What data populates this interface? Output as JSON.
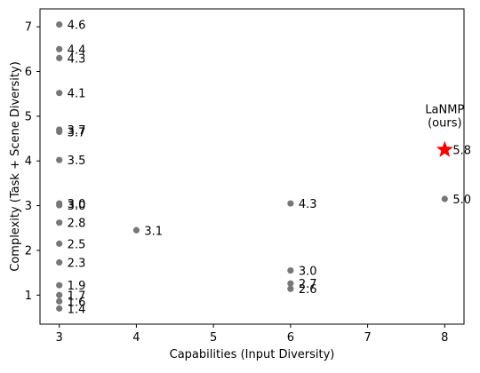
{
  "chart_data": {
    "type": "scatter",
    "title": "",
    "xlabel": "Capabilities (Input Diversity)",
    "ylabel": "Complexity (Task + Scene Diversity)",
    "xlim": [
      2.75,
      8.25
    ],
    "ylim": [
      0.35,
      7.4
    ],
    "xticks": [
      3,
      4,
      5,
      6,
      7,
      8
    ],
    "yticks": [
      1,
      2,
      3,
      4,
      5,
      6,
      7
    ],
    "grid": false,
    "legend": "none",
    "point_color": "#777777",
    "highlight_color": "#ff0000",
    "points": [
      {
        "x": 3,
        "y": 7.05,
        "label": "4.6"
      },
      {
        "x": 3,
        "y": 6.5,
        "label": "4.4"
      },
      {
        "x": 3,
        "y": 6.3,
        "label": "4.3"
      },
      {
        "x": 3,
        "y": 5.52,
        "label": "4.1"
      },
      {
        "x": 3,
        "y": 4.7,
        "label": "3.7"
      },
      {
        "x": 3,
        "y": 4.65,
        "label": "3.7"
      },
      {
        "x": 3,
        "y": 4.02,
        "label": "3.5"
      },
      {
        "x": 3,
        "y": 3.05,
        "label": "3.0"
      },
      {
        "x": 3,
        "y": 3.01,
        "label": "3.0"
      },
      {
        "x": 3,
        "y": 2.62,
        "label": "2.8"
      },
      {
        "x": 3,
        "y": 2.15,
        "label": "2.5"
      },
      {
        "x": 3,
        "y": 1.73,
        "label": "2.3"
      },
      {
        "x": 3,
        "y": 1.22,
        "label": "1.9"
      },
      {
        "x": 3,
        "y": 1.0,
        "label": "1.7"
      },
      {
        "x": 3,
        "y": 0.86,
        "label": "1.6"
      },
      {
        "x": 3,
        "y": 0.7,
        "label": "1.4"
      },
      {
        "x": 4,
        "y": 2.45,
        "label": "3.1"
      },
      {
        "x": 6,
        "y": 3.05,
        "label": "4.3"
      },
      {
        "x": 6,
        "y": 1.55,
        "label": "3.0"
      },
      {
        "x": 6,
        "y": 1.26,
        "label": "2.7"
      },
      {
        "x": 6,
        "y": 1.14,
        "label": "2.6"
      },
      {
        "x": 8,
        "y": 3.15,
        "label": "5.0"
      }
    ],
    "highlight": {
      "x": 8,
      "y": 4.25,
      "label": "5.8",
      "name_lines": [
        "LaNMP",
        "(ours)"
      ]
    }
  }
}
